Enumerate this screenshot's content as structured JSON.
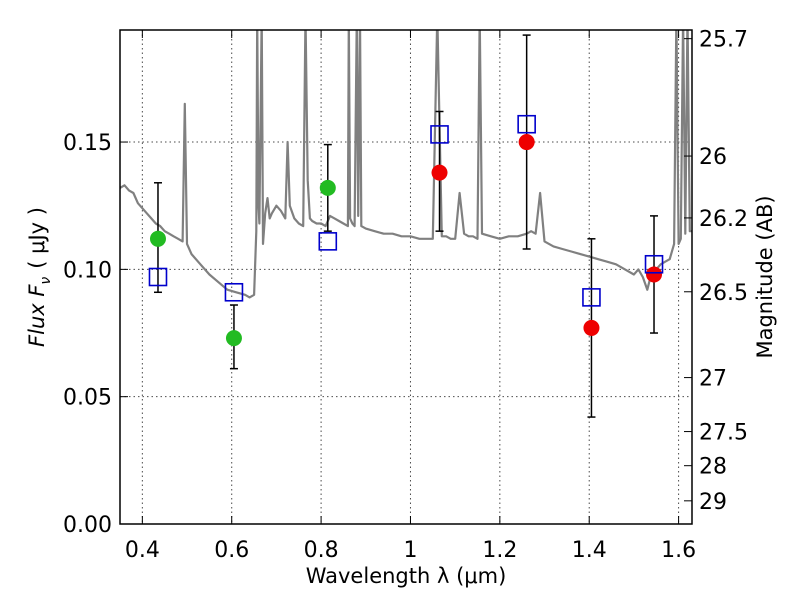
{
  "chart_data": {
    "type": "scatter",
    "title": "",
    "xlabel": "Wavelength  λ (μm)",
    "ylabel": "Flux  F",
    "ylabel_sub": "ν",
    "ylabel_tail": "( μJy )",
    "ylabel_right": "Magnitude (AB)",
    "xlim": [
      0.35,
      1.63
    ],
    "ylim": [
      0.0,
      0.194
    ],
    "grid": true,
    "x_ticks": [
      0.4,
      0.6,
      0.8,
      1.0,
      1.2,
      1.4,
      1.6
    ],
    "x_tick_labels": [
      "0.4",
      "0.6",
      "0.8",
      "1",
      "1.2",
      "1.4",
      "1.6"
    ],
    "y_ticks": [
      0.0,
      0.05,
      0.1,
      0.15
    ],
    "y_tick_labels": [
      "0.00",
      "0.05",
      "0.10",
      "0.15"
    ],
    "right_ticks": [
      {
        "label": "25.7",
        "flux": 0.1906
      },
      {
        "label": "26",
        "flux": 0.1445
      },
      {
        "label": "26.2",
        "flux": 0.1202
      },
      {
        "label": "26.5",
        "flux": 0.0912
      },
      {
        "label": "27",
        "flux": 0.0575
      },
      {
        "label": "27.5",
        "flux": 0.0363
      },
      {
        "label": "28",
        "flux": 0.0229
      },
      {
        "label": "29",
        "flux": 0.0091
      }
    ],
    "colors": {
      "model": "#808080",
      "green": "#22bb22",
      "red": "#ee0000",
      "box": "#0000cc",
      "errorbar": "#000000"
    },
    "series": [
      {
        "marker": "circle-green",
        "x": [
          0.435,
          0.605,
          0.815
        ],
        "y": [
          0.112,
          0.073,
          0.132
        ],
        "yerr_low": [
          0.091,
          0.061,
          0.115
        ],
        "yerr_high": [
          0.134,
          0.086,
          0.149
        ]
      },
      {
        "marker": "circle-red",
        "x": [
          1.065,
          1.26,
          1.405,
          1.545
        ],
        "y": [
          0.138,
          0.15,
          0.077,
          0.098
        ],
        "yerr_low": [
          0.115,
          0.108,
          0.042,
          0.075
        ],
        "yerr_high": [
          0.162,
          0.192,
          0.112,
          0.121
        ]
      },
      {
        "marker": "open-square-blue",
        "x": [
          0.435,
          0.605,
          0.815,
          1.065,
          1.26,
          1.405,
          1.545
        ],
        "y": [
          0.097,
          0.091,
          0.111,
          0.153,
          0.157,
          0.089,
          0.102
        ]
      }
    ],
    "model_spectrum": {
      "x": [
        0.35,
        0.36,
        0.37,
        0.38,
        0.39,
        0.4,
        0.41,
        0.42,
        0.43,
        0.44,
        0.45,
        0.46,
        0.47,
        0.48,
        0.49,
        0.495,
        0.5,
        0.51,
        0.53,
        0.55,
        0.57,
        0.59,
        0.61,
        0.63,
        0.64,
        0.65,
        0.655,
        0.657,
        0.66,
        0.662,
        0.667,
        0.67,
        0.675,
        0.68,
        0.685,
        0.69,
        0.7,
        0.71,
        0.72,
        0.725,
        0.73,
        0.74,
        0.75,
        0.76,
        0.765,
        0.77,
        0.775,
        0.78,
        0.79,
        0.8,
        0.81,
        0.82,
        0.83,
        0.84,
        0.85,
        0.86,
        0.862,
        0.865,
        0.87,
        0.875,
        0.88,
        0.883,
        0.887,
        0.89,
        0.9,
        0.92,
        0.94,
        0.96,
        0.98,
        1.0,
        1.02,
        1.04,
        1.05,
        1.06,
        1.07,
        1.08,
        1.09,
        1.1,
        1.11,
        1.12,
        1.13,
        1.14,
        1.15,
        1.155,
        1.16,
        1.18,
        1.2,
        1.22,
        1.24,
        1.26,
        1.27,
        1.28,
        1.29,
        1.3,
        1.31,
        1.32,
        1.34,
        1.36,
        1.38,
        1.4,
        1.42,
        1.44,
        1.46,
        1.48,
        1.5,
        1.51,
        1.52,
        1.53,
        1.54,
        1.55,
        1.56,
        1.57,
        1.58,
        1.59,
        1.595,
        1.6,
        1.605,
        1.61,
        1.615,
        1.62,
        1.625,
        1.63
      ],
      "y": [
        0.132,
        0.133,
        0.131,
        0.13,
        0.126,
        0.124,
        0.122,
        0.12,
        0.118,
        0.117,
        0.115,
        0.114,
        0.113,
        0.112,
        0.111,
        0.165,
        0.11,
        0.106,
        0.102,
        0.098,
        0.095,
        0.092,
        0.091,
        0.09,
        0.089,
        0.09,
        0.115,
        0.2,
        0.125,
        0.118,
        0.2,
        0.11,
        0.122,
        0.128,
        0.12,
        0.122,
        0.125,
        0.123,
        0.12,
        0.15,
        0.125,
        0.12,
        0.118,
        0.117,
        0.2,
        0.135,
        0.12,
        0.119,
        0.118,
        0.118,
        0.117,
        0.121,
        0.12,
        0.119,
        0.118,
        0.117,
        0.2,
        0.12,
        0.118,
        0.117,
        0.2,
        0.121,
        0.2,
        0.117,
        0.116,
        0.115,
        0.114,
        0.114,
        0.113,
        0.113,
        0.112,
        0.112,
        0.112,
        0.2,
        0.113,
        0.113,
        0.112,
        0.112,
        0.13,
        0.114,
        0.113,
        0.113,
        0.112,
        0.2,
        0.114,
        0.113,
        0.112,
        0.113,
        0.113,
        0.114,
        0.115,
        0.114,
        0.13,
        0.111,
        0.11,
        0.109,
        0.108,
        0.107,
        0.106,
        0.105,
        0.104,
        0.103,
        0.102,
        0.1,
        0.098,
        0.1,
        0.097,
        0.092,
        0.099,
        0.1,
        0.102,
        0.103,
        0.104,
        0.11,
        0.2,
        0.11,
        0.112,
        0.2,
        0.114,
        0.2,
        0.115,
        0.115
      ]
    }
  }
}
